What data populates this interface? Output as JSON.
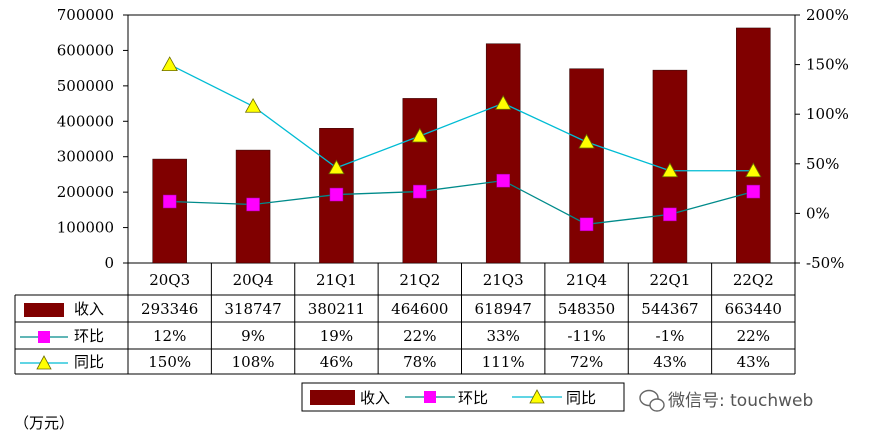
{
  "chart_data": {
    "type": "bar",
    "unit_label": "（万元）",
    "categories": [
      "20Q3",
      "20Q4",
      "21Q1",
      "21Q2",
      "21Q3",
      "21Q4",
      "22Q1",
      "22Q2"
    ],
    "series": [
      {
        "name": "收入",
        "type": "bar",
        "axis": "left",
        "values": [
          293346,
          318747,
          380211,
          464600,
          618947,
          548350,
          544367,
          663440
        ],
        "labels": [
          "293346",
          "318747",
          "380211",
          "464600",
          "618947",
          "548350",
          "544367",
          "663440"
        ],
        "color": "#800000"
      },
      {
        "name": "环比",
        "type": "line",
        "axis": "right",
        "marker": "square",
        "values": [
          12,
          9,
          19,
          22,
          33,
          -11,
          -1,
          22
        ],
        "labels": [
          "12%",
          "9%",
          "19%",
          "22%",
          "33%",
          "-11%",
          "-1%",
          "22%"
        ],
        "color": "#ff00ff",
        "line_color": "#008b8b"
      },
      {
        "name": "同比",
        "type": "line",
        "axis": "right",
        "marker": "triangle",
        "values": [
          150,
          108,
          46,
          78,
          111,
          72,
          43,
          43
        ],
        "labels": [
          "150%",
          "108%",
          "46%",
          "78%",
          "111%",
          "72%",
          "43%",
          "43%"
        ],
        "color": "#ffff00",
        "line_color": "#00bcd4"
      }
    ],
    "y_left": {
      "ylim": [
        0,
        700000
      ],
      "ticks": [
        "700000",
        "600000",
        "500000",
        "400000",
        "300000",
        "200000",
        "100000",
        "0"
      ]
    },
    "y_right": {
      "ylim": [
        -50,
        200
      ],
      "ticks": [
        "200%",
        "150%",
        "100%",
        "50%",
        "0%",
        "-50%"
      ]
    },
    "legend": {
      "placement": "bottom",
      "items": [
        {
          "label": "收入"
        },
        {
          "label": "环比"
        },
        {
          "label": "同比"
        }
      ]
    },
    "grid": false
  },
  "watermark": {
    "text": "微信号: touchweb"
  },
  "colors": {
    "bar": "#800000",
    "mom_marker": "#ff00ff",
    "yoy_marker": "#ffff00",
    "line": "#1fa9b8"
  }
}
